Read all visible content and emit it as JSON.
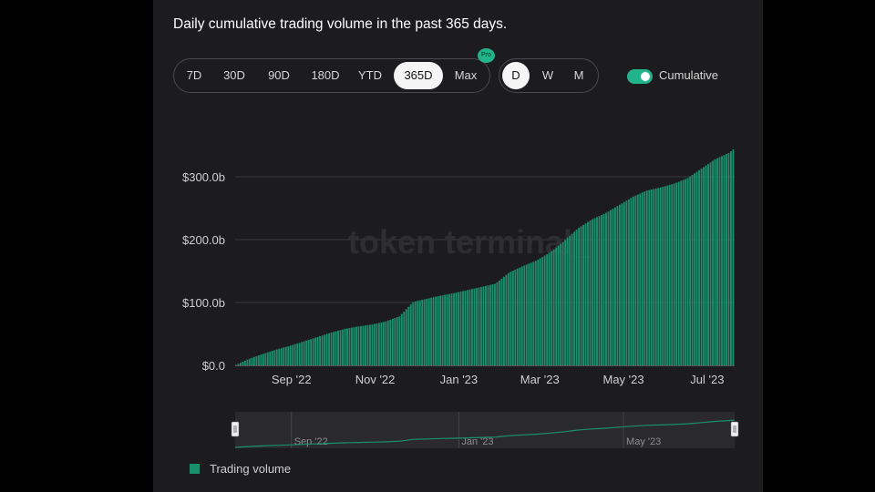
{
  "title": "Daily cumulative trading volume in the past 365 days.",
  "range_buttons": [
    "7D",
    "30D",
    "90D",
    "180D",
    "YTD",
    "365D",
    "Max"
  ],
  "active_range": "365D",
  "pro_badge": "Pro",
  "granularity_buttons": [
    "D",
    "W",
    "M"
  ],
  "active_granularity": "D",
  "cumulative_toggle": {
    "label": "Cumulative",
    "on": true
  },
  "watermark": "token terminal_",
  "colors": {
    "bar": "#1a8f6c",
    "accent": "#23b38a",
    "background": "#1c1c1e",
    "grid": "#3a3a3d"
  },
  "chart_data": {
    "type": "bar",
    "title": "Daily cumulative trading volume in the past 365 days.",
    "xlabel": "",
    "ylabel": "",
    "yticks": [
      "$0.0",
      "$100.0b",
      "$200.0b",
      "$300.0b"
    ],
    "xticks": [
      "Sep '22",
      "Nov '22",
      "Jan '23",
      "Mar '23",
      "May '23",
      "Jul '23"
    ],
    "ylim": [
      0,
      345
    ],
    "y_unit": "billion USD",
    "x_start": "2022-07-22",
    "x_end": "2023-07-21",
    "grid": true,
    "legend": {
      "position": "bottom-left",
      "entries": [
        "Trading volume"
      ]
    },
    "series": [
      {
        "name": "Trading volume",
        "x": [
          "2022-07-22",
          "2022-08-01",
          "2022-08-11",
          "2022-08-21",
          "2022-08-31",
          "2022-09-10",
          "2022-09-20",
          "2022-09-30",
          "2022-10-10",
          "2022-10-20",
          "2022-10-30",
          "2022-11-09",
          "2022-11-19",
          "2022-11-29",
          "2022-12-09",
          "2022-12-19",
          "2022-12-29",
          "2023-01-08",
          "2023-01-18",
          "2023-01-28",
          "2023-02-07",
          "2023-02-17",
          "2023-02-27",
          "2023-03-09",
          "2023-03-19",
          "2023-03-29",
          "2023-04-08",
          "2023-04-18",
          "2023-04-28",
          "2023-05-08",
          "2023-05-18",
          "2023-05-28",
          "2023-06-07",
          "2023-06-17",
          "2023-06-27",
          "2023-07-07",
          "2023-07-17",
          "2023-07-21"
        ],
        "values": [
          0,
          10,
          18,
          25,
          31,
          38,
          45,
          52,
          58,
          62,
          65,
          70,
          78,
          101,
          106,
          111,
          115,
          120,
          125,
          130,
          148,
          158,
          167,
          180,
          198,
          218,
          232,
          242,
          255,
          268,
          278,
          283,
          289,
          298,
          313,
          328,
          338,
          345
        ]
      }
    ]
  },
  "navigator": {
    "ticks": [
      "Sep '22",
      "Jan '23",
      "May '23"
    ]
  }
}
